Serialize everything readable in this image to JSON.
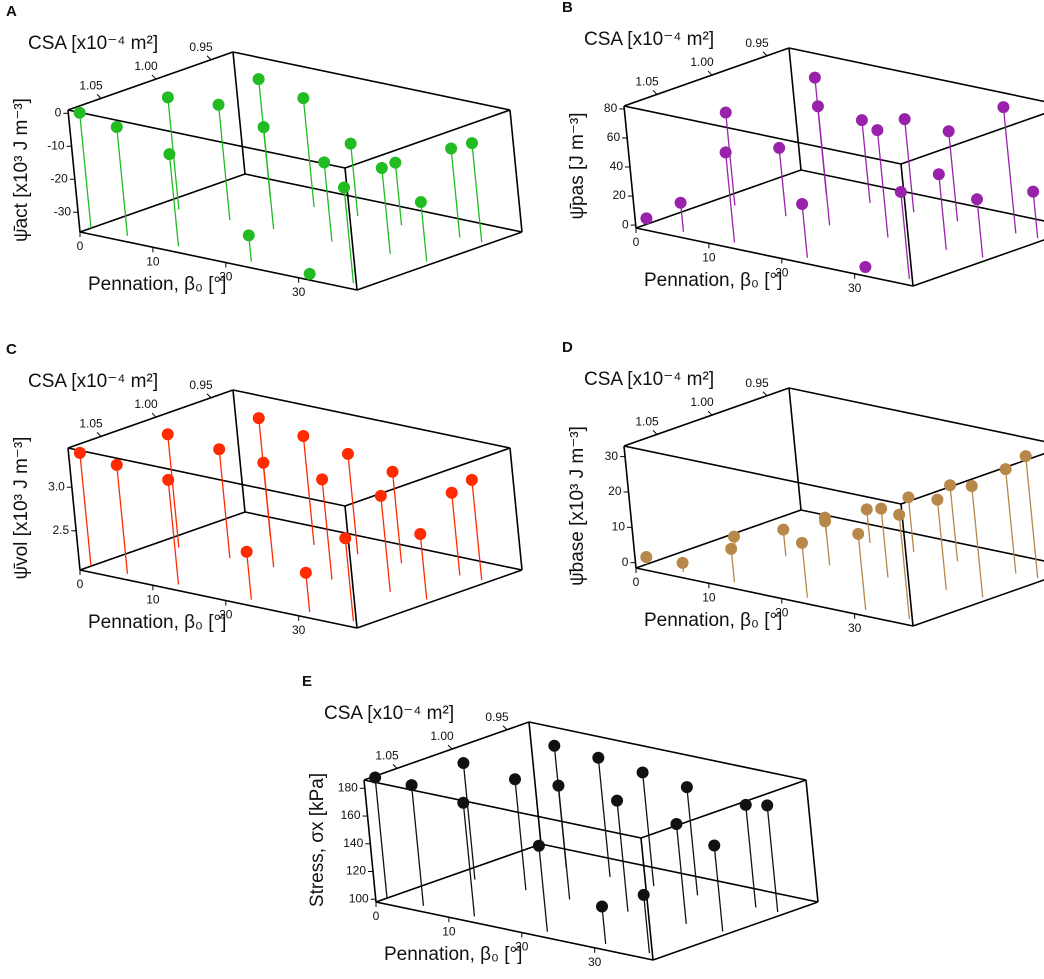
{
  "chart_data": [
    {
      "type": "stem3d",
      "panel": "A",
      "y_label": "CSA [x10⁻⁴ m²]",
      "z_label": "ψ̄act [x10³ J m⁻³]",
      "x_label": "Pennation, β₀ [°]",
      "color": "#22bb22",
      "xlim": [
        0,
        38
      ],
      "ylim": [
        1.08,
        0.93
      ],
      "zlim": [
        -36,
        1
      ],
      "xticks": [
        0,
        10,
        20,
        30
      ],
      "yticks": [
        1.05,
        {
          "value": 1,
          "label": "1.00"
        },
        0.95
      ],
      "zticks": [
        0,
        -10,
        -20,
        -30
      ],
      "x": [
        0,
        5,
        12,
        22,
        30,
        36,
        3,
        10,
        16,
        24,
        32,
        37,
        8,
        14,
        20,
        26,
        34,
        37
      ],
      "y": [
        1.07,
        1.07,
        1.07,
        1.07,
        1.07,
        1.07,
        1.01,
        1.01,
        1.01,
        1.01,
        1.01,
        1.01,
        0.96,
        0.96,
        0.96,
        0.96,
        0.96,
        0.96
      ],
      "z": [
        -1,
        -3,
        -8,
        -28,
        -36,
        -7,
        -2,
        -1,
        -5,
        -12,
        -10,
        -18,
        0,
        -3,
        -14,
        -17,
        -9,
        -6
      ]
    },
    {
      "type": "stem3d",
      "panel": "B",
      "y_label": "CSA [x10⁻⁴ m²]",
      "z_label": "ψ̄pas [J m⁻³]",
      "x_label": "Pennation, β₀ [°]",
      "color": "#9922aa",
      "xlim": [
        0,
        38
      ],
      "ylim": [
        1.08,
        0.93
      ],
      "zlim": [
        -2,
        82
      ],
      "xticks": [
        0,
        10,
        20,
        30
      ],
      "yticks": [
        1.05,
        {
          "value": 1,
          "label": "1.00"
        },
        0.95
      ],
      "zticks": [
        0,
        20,
        40,
        60,
        80
      ],
      "x": [
        0,
        5,
        12,
        22,
        30,
        36,
        3,
        10,
        16,
        24,
        32,
        37,
        8,
        14,
        20,
        26,
        34,
        37
      ],
      "y": [
        1.07,
        1.07,
        1.07,
        1.07,
        1.07,
        1.07,
        1.01,
        1.01,
        1.01,
        1.01,
        1.01,
        1.01,
        0.96,
        0.96,
        0.96,
        0.96,
        0.96,
        0.96
      ],
      "z": [
        2,
        18,
        60,
        35,
        0,
        58,
        62,
        45,
        80,
        72,
        50,
        38,
        78,
        55,
        62,
        60,
        85,
        30
      ]
    },
    {
      "type": "stem3d",
      "panel": "C",
      "y_label": "CSA [x10⁻⁴ m²]",
      "z_label": "ψ̄vol [x10³ J m⁻³]",
      "x_label": "Pennation, β₀ [°]",
      "color": "#ff2a00",
      "xlim": [
        0,
        38
      ],
      "ylim": [
        1.08,
        0.93
      ],
      "zlim": [
        2.05,
        3.45
      ],
      "xticks": [
        0,
        10,
        20,
        30
      ],
      "yticks": [
        1.05,
        {
          "value": 1,
          "label": "1.00"
        },
        0.95
      ],
      "zticks": [
        2.5,
        {
          "value": 3,
          "label": "3.0"
        }
      ],
      "x": [
        0,
        5,
        12,
        22,
        30,
        36,
        3,
        10,
        16,
        24,
        32,
        37,
        8,
        14,
        20,
        26,
        34,
        37
      ],
      "y": [
        1.07,
        1.07,
        1.07,
        1.07,
        1.07,
        1.07,
        1.01,
        1.01,
        1.01,
        1.01,
        1.01,
        1.01,
        0.96,
        0.96,
        0.96,
        0.96,
        0.96,
        0.96
      ],
      "z": [
        3.35,
        3.3,
        3.25,
        2.6,
        2.5,
        3.0,
        3.35,
        3.3,
        3.25,
        3.2,
        3.15,
        2.8,
        3.4,
        3.3,
        3.2,
        3.1,
        3.0,
        3.2
      ]
    },
    {
      "type": "stem3d",
      "panel": "D",
      "y_label": "CSA [x10⁻⁴ m²]",
      "z_label": "ψ̄base [x10³ J m⁻³]",
      "x_label": "Pennation, β₀ [°]",
      "color": "#b8874a",
      "xlim": [
        0,
        38
      ],
      "ylim": [
        1.08,
        0.93
      ],
      "zlim": [
        -1.5,
        33
      ],
      "xticks": [
        0,
        10,
        20,
        30
      ],
      "yticks": [
        1.05,
        {
          "value": 1,
          "label": "1.00"
        },
        0.95
      ],
      "zticks": [
        0,
        10,
        20,
        30
      ],
      "x": [
        0,
        5,
        12,
        22,
        30,
        36,
        3,
        10,
        16,
        24,
        32,
        37,
        8,
        14,
        20,
        26,
        34,
        37
      ],
      "y": [
        1.07,
        1.07,
        1.07,
        1.07,
        1.07,
        1.07,
        1.01,
        1.01,
        1.01,
        1.01,
        1.01,
        1.01,
        0.96,
        0.96,
        0.96,
        0.96,
        0.96,
        0.96
      ],
      "z": [
        0.5,
        1,
        8,
        14,
        20,
        28,
        1,
        6,
        12,
        18,
        24,
        30,
        2,
        8,
        14,
        20,
        28,
        33
      ]
    },
    {
      "type": "stem3d",
      "panel": "E",
      "y_label": "CSA [x10⁻⁴ m²]",
      "z_label": "Stress, σx [kPa]",
      "x_label": "Pennation, β₀ [°]",
      "color": "#111111",
      "xlim": [
        0,
        38
      ],
      "ylim": [
        1.08,
        0.93
      ],
      "zlim": [
        98,
        186
      ],
      "xticks": [
        0,
        10,
        20,
        30
      ],
      "yticks": [
        1.05,
        {
          "value": 1,
          "label": "1.00"
        },
        0.95
      ],
      "zticks": [
        100,
        120,
        140,
        160,
        180
      ],
      "x": [
        0,
        5,
        12,
        22,
        30,
        36,
        3,
        10,
        16,
        24,
        32,
        37,
        8,
        14,
        20,
        26,
        34,
        37
      ],
      "y": [
        1.07,
        1.07,
        1.07,
        1.07,
        1.07,
        1.07,
        1.01,
        1.01,
        1.01,
        1.01,
        1.01,
        1.01,
        0.96,
        0.96,
        0.96,
        0.96,
        0.96,
        0.96
      ],
      "z": [
        185,
        185,
        180,
        160,
        125,
        140,
        182,
        178,
        180,
        178,
        170,
        160,
        186,
        184,
        180,
        176,
        172,
        175
      ]
    }
  ]
}
